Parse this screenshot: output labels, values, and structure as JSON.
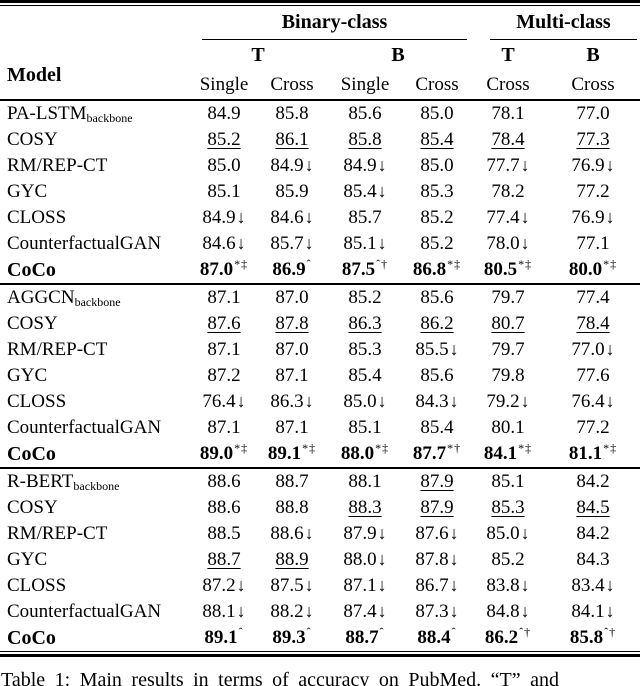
{
  "colors": {
    "text": "#000000",
    "background": "#ffffff",
    "rule": "#000000"
  },
  "table": {
    "model_label": "Model",
    "col_groups": [
      {
        "label": "Binary-class",
        "span": 4
      },
      {
        "label": "Multi-class",
        "span": 2
      }
    ],
    "subgroups": [
      {
        "label": "T",
        "span": 2
      },
      {
        "label": "B",
        "span": 2
      },
      {
        "label": "T",
        "span": 1
      },
      {
        "label": "B",
        "span": 1
      }
    ],
    "col_headers": [
      "Single",
      "Cross",
      "Single",
      "Cross",
      "Cross",
      "Cross"
    ],
    "marks": {
      "down_arrow": "↓",
      "star": "*",
      "dagger": "†",
      "double_dagger": "‡",
      "caret": "ˆ"
    },
    "blocks": [
      {
        "rows": [
          {
            "model": "PA-LSTM",
            "subscript": "backbone",
            "bold": false,
            "cells": [
              {
                "v": "84.9"
              },
              {
                "v": "85.8"
              },
              {
                "v": "85.6"
              },
              {
                "v": "85.0"
              },
              {
                "v": "78.1"
              },
              {
                "v": "77.0"
              }
            ]
          },
          {
            "model": "COSY",
            "bold": false,
            "cells": [
              {
                "v": "85.2",
                "u": true
              },
              {
                "v": "86.1",
                "u": true
              },
              {
                "v": "85.8",
                "u": true
              },
              {
                "v": "85.4",
                "u": true
              },
              {
                "v": "78.4",
                "u": true
              },
              {
                "v": "77.3",
                "u": true
              }
            ]
          },
          {
            "model": "RM/REP-CT",
            "bold": false,
            "cells": [
              {
                "v": "85.0"
              },
              {
                "v": "84.9",
                "d": true
              },
              {
                "v": "84.9",
                "d": true
              },
              {
                "v": "85.0"
              },
              {
                "v": "77.7",
                "d": true
              },
              {
                "v": "76.9",
                "d": true
              }
            ]
          },
          {
            "model": "GYC",
            "bold": false,
            "cells": [
              {
                "v": "85.1"
              },
              {
                "v": "85.9"
              },
              {
                "v": "85.4",
                "d": true
              },
              {
                "v": "85.3"
              },
              {
                "v": "78.2"
              },
              {
                "v": "77.2"
              }
            ]
          },
          {
            "model": "CLOSS",
            "bold": false,
            "cells": [
              {
                "v": "84.9",
                "d": true
              },
              {
                "v": "84.6",
                "d": true
              },
              {
                "v": "85.7"
              },
              {
                "v": "85.2"
              },
              {
                "v": "77.4",
                "d": true
              },
              {
                "v": "76.9",
                "d": true
              }
            ]
          },
          {
            "model": "CounterfactualGAN",
            "bold": false,
            "cells": [
              {
                "v": "84.6",
                "d": true
              },
              {
                "v": "85.7",
                "d": true
              },
              {
                "v": "85.1",
                "d": true
              },
              {
                "v": "85.2"
              },
              {
                "v": "78.0",
                "d": true
              },
              {
                "v": "77.1"
              }
            ]
          },
          {
            "model": "CoCo",
            "bold": true,
            "cells": [
              {
                "v": "87.0",
                "s": "*‡"
              },
              {
                "v": "86.9",
                "s": "ˆ"
              },
              {
                "v": "87.5",
                "s": "ˆ†"
              },
              {
                "v": "86.8",
                "s": "*‡"
              },
              {
                "v": "80.5",
                "s": "*‡"
              },
              {
                "v": "80.0",
                "s": "*‡"
              }
            ]
          }
        ]
      },
      {
        "rows": [
          {
            "model": "AGGCN",
            "subscript": "backbone",
            "bold": false,
            "cells": [
              {
                "v": "87.1"
              },
              {
                "v": "87.0"
              },
              {
                "v": "85.2"
              },
              {
                "v": "85.6"
              },
              {
                "v": "79.7"
              },
              {
                "v": "77.4"
              }
            ]
          },
          {
            "model": "COSY",
            "bold": false,
            "cells": [
              {
                "v": "87.6",
                "u": true
              },
              {
                "v": "87.8",
                "u": true
              },
              {
                "v": "86.3",
                "u": true
              },
              {
                "v": "86.2",
                "u": true
              },
              {
                "v": "80.7",
                "u": true
              },
              {
                "v": "78.4",
                "u": true
              }
            ]
          },
          {
            "model": "RM/REP-CT",
            "bold": false,
            "cells": [
              {
                "v": "87.1"
              },
              {
                "v": "87.0"
              },
              {
                "v": "85.3"
              },
              {
                "v": "85.5",
                "d": true
              },
              {
                "v": "79.7"
              },
              {
                "v": "77.0",
                "d": true
              }
            ]
          },
          {
            "model": "GYC",
            "bold": false,
            "cells": [
              {
                "v": "87.2"
              },
              {
                "v": "87.1"
              },
              {
                "v": "85.4"
              },
              {
                "v": "85.6"
              },
              {
                "v": "79.8"
              },
              {
                "v": "77.6"
              }
            ]
          },
          {
            "model": "CLOSS",
            "bold": false,
            "cells": [
              {
                "v": "76.4",
                "d": true
              },
              {
                "v": "86.3",
                "d": true
              },
              {
                "v": "85.0",
                "d": true
              },
              {
                "v": "84.3",
                "d": true
              },
              {
                "v": "79.2",
                "d": true
              },
              {
                "v": "76.4",
                "d": true
              }
            ]
          },
          {
            "model": "CounterfactualGAN",
            "bold": false,
            "cells": [
              {
                "v": "87.1"
              },
              {
                "v": "87.1"
              },
              {
                "v": "85.1"
              },
              {
                "v": "85.4"
              },
              {
                "v": "80.1"
              },
              {
                "v": "77.2"
              }
            ]
          },
          {
            "model": "CoCo",
            "bold": true,
            "cells": [
              {
                "v": "89.0",
                "s": "*‡"
              },
              {
                "v": "89.1",
                "s": "*‡"
              },
              {
                "v": "88.0",
                "s": "*‡"
              },
              {
                "v": "87.7",
                "s": "*†"
              },
              {
                "v": "84.1",
                "s": "*‡"
              },
              {
                "v": "81.1",
                "s": "*‡"
              }
            ]
          }
        ]
      },
      {
        "rows": [
          {
            "model": "R-BERT",
            "subscript": "backbone",
            "bold": false,
            "cells": [
              {
                "v": "88.6"
              },
              {
                "v": "88.7"
              },
              {
                "v": "88.1"
              },
              {
                "v": "87.9",
                "u": true
              },
              {
                "v": "85.1"
              },
              {
                "v": "84.2"
              }
            ]
          },
          {
            "model": "COSY",
            "bold": false,
            "cells": [
              {
                "v": "88.6"
              },
              {
                "v": "88.8"
              },
              {
                "v": "88.3",
                "u": true
              },
              {
                "v": "87.9",
                "u": true
              },
              {
                "v": "85.3",
                "u": true
              },
              {
                "v": "84.5",
                "u": true
              }
            ]
          },
          {
            "model": "RM/REP-CT",
            "bold": false,
            "cells": [
              {
                "v": "88.5"
              },
              {
                "v": "88.6",
                "d": true
              },
              {
                "v": "87.9",
                "d": true
              },
              {
                "v": "87.6",
                "d": true
              },
              {
                "v": "85.0",
                "d": true
              },
              {
                "v": "84.2"
              }
            ]
          },
          {
            "model": "GYC",
            "bold": false,
            "cells": [
              {
                "v": "88.7",
                "u": true
              },
              {
                "v": "88.9",
                "u": true
              },
              {
                "v": "88.0",
                "d": true
              },
              {
                "v": "87.8",
                "d": true
              },
              {
                "v": "85.2"
              },
              {
                "v": "84.3"
              }
            ]
          },
          {
            "model": "CLOSS",
            "bold": false,
            "cells": [
              {
                "v": "87.2",
                "d": true
              },
              {
                "v": "87.5",
                "d": true
              },
              {
                "v": "87.1",
                "d": true
              },
              {
                "v": "86.7",
                "d": true
              },
              {
                "v": "83.8",
                "d": true
              },
              {
                "v": "83.4",
                "d": true
              }
            ]
          },
          {
            "model": "CounterfactualGAN",
            "bold": false,
            "cells": [
              {
                "v": "88.1",
                "d": true
              },
              {
                "v": "88.2",
                "d": true
              },
              {
                "v": "87.4",
                "d": true
              },
              {
                "v": "87.3",
                "d": true
              },
              {
                "v": "84.8",
                "d": true
              },
              {
                "v": "84.1",
                "d": true
              }
            ]
          },
          {
            "model": "CoCo",
            "bold": true,
            "cells": [
              {
                "v": "89.1",
                "s": "ˆ"
              },
              {
                "v": "89.3",
                "s": "ˆ"
              },
              {
                "v": "88.7",
                "s": "ˆ"
              },
              {
                "v": "88.4",
                "s": "ˆ"
              },
              {
                "v": "86.2",
                "s": "ˆ†"
              },
              {
                "v": "85.8",
                "s": "ˆ†"
              }
            ]
          }
        ]
      }
    ]
  },
  "caption": "Table 1:  Main results in terms of accuracy on PubMed.  “T” and"
}
